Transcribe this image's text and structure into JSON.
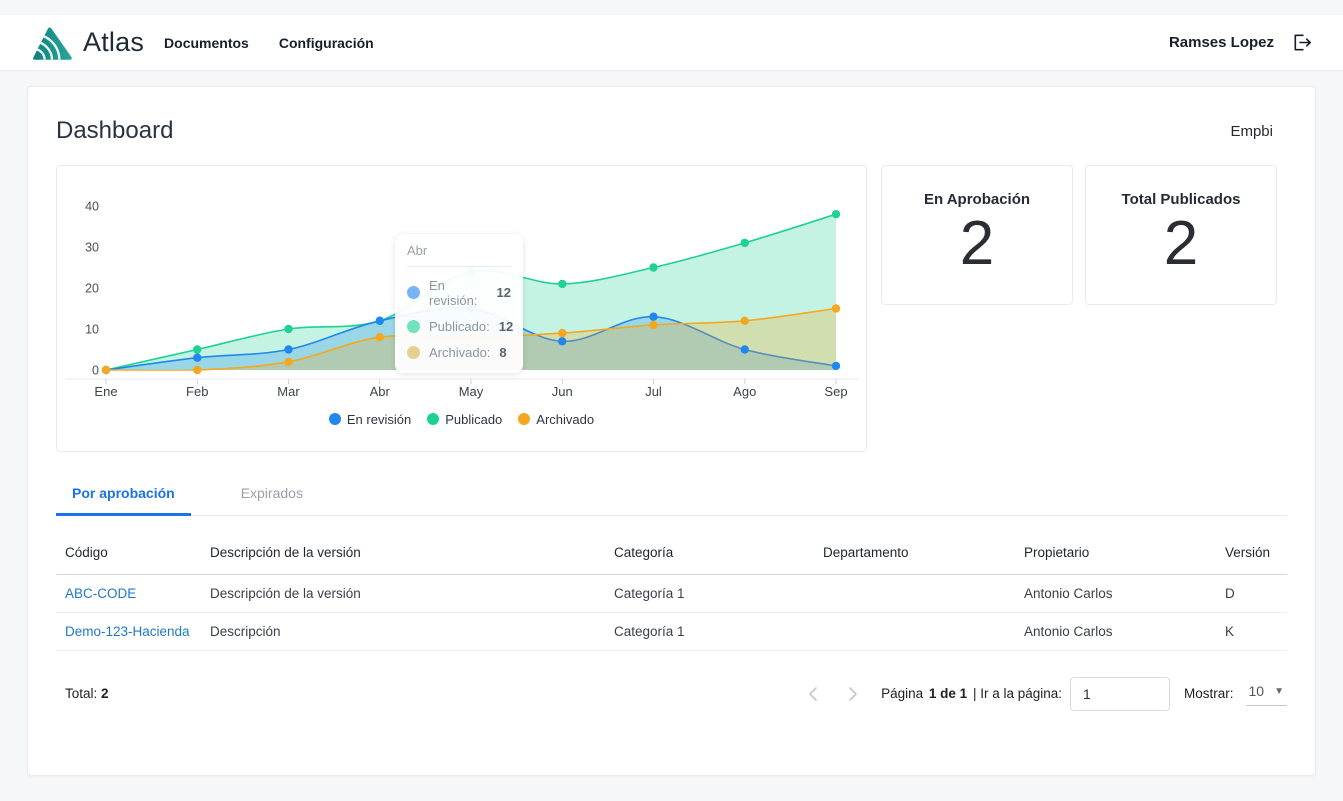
{
  "navbar": {
    "brand": "Atlas",
    "items": [
      {
        "label": "Documentos"
      },
      {
        "label": "Configuración"
      }
    ],
    "user": "Ramses Lopez"
  },
  "page": {
    "title": "Dashboard",
    "corner_label": "Empbi"
  },
  "chart_data": {
    "type": "area",
    "title": "",
    "xlabel": "",
    "ylabel": "",
    "categories": [
      "Ene",
      "Feb",
      "Mar",
      "Abr",
      "May",
      "Jun",
      "Jul",
      "Ago",
      "Sep"
    ],
    "series": [
      {
        "name": "En revisión",
        "color": "#2087ee",
        "fill": "rgba(32,135,238,0.26)",
        "values": [
          0,
          3,
          5,
          12,
          15,
          7,
          13,
          5,
          1
        ]
      },
      {
        "name": "Publicado",
        "color": "#1ed292",
        "fill": "rgba(30,210,146,0.26)",
        "values": [
          0,
          5,
          10,
          12,
          24,
          21,
          25,
          31,
          38
        ]
      },
      {
        "name": "Archivado",
        "color": "#f5a71f",
        "fill": "rgba(245,167,31,0.26)",
        "values": [
          0,
          0,
          2,
          8,
          8,
          9,
          11,
          12,
          15
        ]
      }
    ],
    "ylim": [
      0,
      40
    ],
    "yticks": [
      0,
      10,
      20,
      30,
      40
    ],
    "grid": false,
    "legend_position": "bottom",
    "tooltip": {
      "title": "Abr",
      "rows": [
        {
          "label": "En revisión:",
          "value": "12",
          "color": "#2087ee"
        },
        {
          "label": "Publicado:",
          "value": "12",
          "color": "#1ed292"
        },
        {
          "label": "Archivado:",
          "value": "8",
          "color": "#d9b64e"
        }
      ]
    }
  },
  "stats": [
    {
      "label": "En Aprobación",
      "value": "2"
    },
    {
      "label": "Total Publicados",
      "value": "2"
    }
  ],
  "tabs": [
    {
      "label": "Por aprobación",
      "active": true
    },
    {
      "label": "Expirados",
      "active": false
    }
  ],
  "table": {
    "columns": [
      "Código",
      "Descripción de la versión",
      "Categoría",
      "Departamento",
      "Propietario",
      "Versión"
    ],
    "column_keys": [
      "codigo",
      "descripcion",
      "categoria",
      "departamento",
      "propietario",
      "version"
    ],
    "rows": [
      [
        "ABC-CODE",
        "Descripción de la versión",
        "Categoría 1",
        "",
        "Antonio Carlos",
        "D"
      ],
      [
        "Demo-123-Hacienda",
        "Descripción",
        "Categoría 1",
        "",
        "Antonio Carlos",
        "K"
      ]
    ]
  },
  "footer": {
    "total_label": "Total:",
    "total_value": "2",
    "page_label_prefix": "Página ",
    "page_current": "1 de 1",
    "page_label_suffix": " | Ir a la página:",
    "page_input_value": "1",
    "show_label": "Mostrar:",
    "show_value": "10"
  },
  "colors": {
    "accent": "#1a73e8",
    "link": "#1e78c8",
    "brand_teal": "#14928c"
  }
}
